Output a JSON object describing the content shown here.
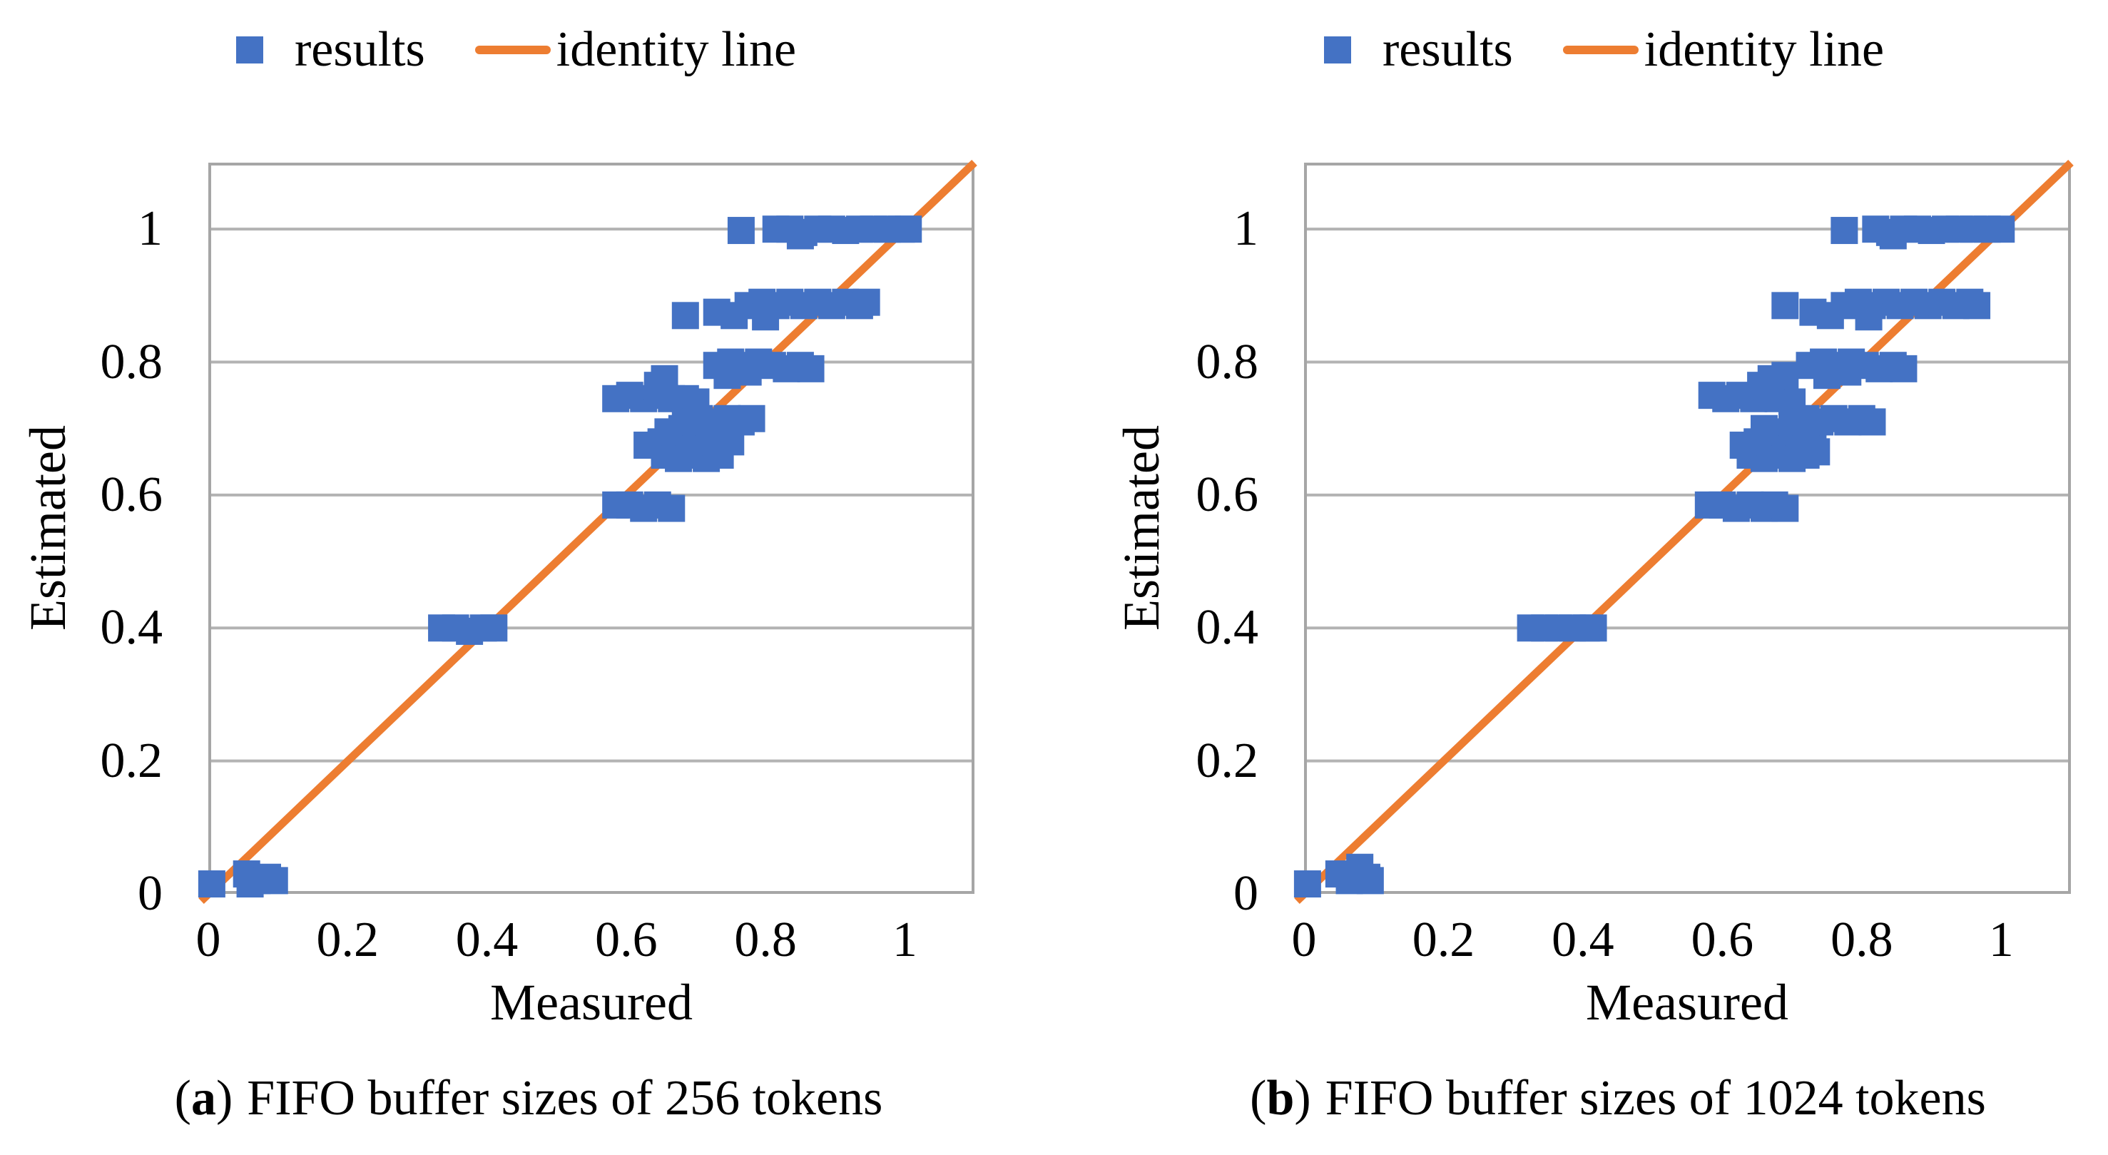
{
  "figure": {
    "background": "#FFFFFF",
    "text_color": "#000000"
  },
  "chart_data": [
    {
      "id": "a",
      "type": "scatter",
      "caption": {
        "open": "(",
        "letter": "a",
        "close": ")",
        "text": "FIFO buffer sizes of 256 tokens"
      },
      "xlabel": "Measured",
      "ylabel": "Estimated",
      "xlim": [
        0,
        1.1
      ],
      "ylim": [
        0,
        1.1
      ],
      "grid": {
        "axis": "y",
        "values": [
          0.2,
          0.4,
          0.6,
          0.8,
          1.0
        ],
        "color": "#B3B3B3"
      },
      "border_color": "#A6A6A6",
      "x_ticks": [
        {
          "v": 0,
          "label": "0"
        },
        {
          "v": 0.2,
          "label": "0.2"
        },
        {
          "v": 0.4,
          "label": "0.4"
        },
        {
          "v": 0.6,
          "label": "0.6"
        },
        {
          "v": 0.8,
          "label": "0.8"
        },
        {
          "v": 1,
          "label": "1"
        }
      ],
      "y_ticks": [
        {
          "v": 0,
          "label": "0"
        },
        {
          "v": 0.2,
          "label": "0.2"
        },
        {
          "v": 0.4,
          "label": "0.4"
        },
        {
          "v": 0.6,
          "label": "0.6"
        },
        {
          "v": 0.8,
          "label": "0.8"
        },
        {
          "v": 1,
          "label": "1"
        }
      ],
      "legend": [
        {
          "label": "results",
          "marker": "square",
          "color": "#4472C4"
        },
        {
          "label": "identity line",
          "marker": "line",
          "color": "#ED7D31"
        }
      ],
      "identity_line": {
        "from": [
          0,
          0
        ],
        "to": [
          1.1,
          1.1
        ],
        "color": "#ED7D31",
        "width": 11
      },
      "series": [
        {
          "name": "results",
          "marker": "square",
          "marker_size": 38,
          "color": "#4472C4",
          "points": [
            [
              0.005,
              0.015
            ],
            [
              0.055,
              0.03
            ],
            [
              0.06,
              0.015
            ],
            [
              0.07,
              0.02
            ],
            [
              0.085,
              0.025
            ],
            [
              0.095,
              0.02
            ],
            [
              0.335,
              0.4
            ],
            [
              0.355,
              0.4
            ],
            [
              0.375,
              0.395
            ],
            [
              0.395,
              0.4
            ],
            [
              0.41,
              0.4
            ],
            [
              0.585,
              0.585
            ],
            [
              0.605,
              0.585
            ],
            [
              0.625,
              0.58
            ],
            [
              0.645,
              0.585
            ],
            [
              0.665,
              0.58
            ],
            [
              0.585,
              0.745
            ],
            [
              0.605,
              0.75
            ],
            [
              0.625,
              0.745
            ],
            [
              0.645,
              0.75
            ],
            [
              0.665,
              0.745
            ],
            [
              0.685,
              0.745
            ],
            [
              0.7,
              0.74
            ],
            [
              0.645,
              0.765
            ],
            [
              0.655,
              0.775
            ],
            [
              0.655,
              0.66
            ],
            [
              0.675,
              0.655
            ],
            [
              0.695,
              0.66
            ],
            [
              0.715,
              0.655
            ],
            [
              0.735,
              0.66
            ],
            [
              0.63,
              0.675
            ],
            [
              0.65,
              0.68
            ],
            [
              0.67,
              0.68
            ],
            [
              0.69,
              0.675
            ],
            [
              0.71,
              0.68
            ],
            [
              0.73,
              0.675
            ],
            [
              0.75,
              0.68
            ],
            [
              0.66,
              0.695
            ],
            [
              0.68,
              0.7
            ],
            [
              0.7,
              0.7
            ],
            [
              0.72,
              0.695
            ],
            [
              0.745,
              0.7
            ],
            [
              0.685,
              0.71
            ],
            [
              0.705,
              0.715
            ],
            [
              0.725,
              0.71
            ],
            [
              0.745,
              0.715
            ],
            [
              0.765,
              0.71
            ],
            [
              0.78,
              0.715
            ],
            [
              0.73,
              0.795
            ],
            [
              0.75,
              0.8
            ],
            [
              0.77,
              0.795
            ],
            [
              0.79,
              0.8
            ],
            [
              0.81,
              0.795
            ],
            [
              0.83,
              0.79
            ],
            [
              0.85,
              0.795
            ],
            [
              0.865,
              0.79
            ],
            [
              0.745,
              0.78
            ],
            [
              0.775,
              0.785
            ],
            [
              0.685,
              0.87
            ],
            [
              0.73,
              0.875
            ],
            [
              0.755,
              0.87
            ],
            [
              0.775,
              0.885
            ],
            [
              0.795,
              0.89
            ],
            [
              0.815,
              0.885
            ],
            [
              0.835,
              0.89
            ],
            [
              0.855,
              0.885
            ],
            [
              0.875,
              0.89
            ],
            [
              0.895,
              0.885
            ],
            [
              0.915,
              0.89
            ],
            [
              0.935,
              0.885
            ],
            [
              0.945,
              0.89
            ],
            [
              0.8,
              0.868
            ],
            [
              0.765,
              0.998
            ],
            [
              0.815,
              1.0
            ],
            [
              0.835,
              1.0
            ],
            [
              0.85,
              0.99
            ],
            [
              0.855,
              0.995
            ],
            [
              0.875,
              1.0
            ],
            [
              0.895,
              1.0
            ],
            [
              0.915,
              0.998
            ],
            [
              0.935,
              1.0
            ],
            [
              0.955,
              1.0
            ],
            [
              0.975,
              1.0
            ],
            [
              0.995,
              1.0
            ],
            [
              1.005,
              1.0
            ]
          ]
        }
      ]
    },
    {
      "id": "b",
      "type": "scatter",
      "caption": {
        "open": "(",
        "letter": "b",
        "close": ")",
        "text": "FIFO buffer sizes of 1024 tokens"
      },
      "xlabel": "Measured",
      "ylabel": "Estimated",
      "xlim": [
        0,
        1.1
      ],
      "ylim": [
        0,
        1.1
      ],
      "grid": {
        "axis": "y",
        "values": [
          0.2,
          0.4,
          0.6,
          0.8,
          1.0
        ],
        "color": "#B3B3B3"
      },
      "border_color": "#A6A6A6",
      "x_ticks": [
        {
          "v": 0,
          "label": "0"
        },
        {
          "v": 0.2,
          "label": "0.2"
        },
        {
          "v": 0.4,
          "label": "0.4"
        },
        {
          "v": 0.6,
          "label": "0.6"
        },
        {
          "v": 0.8,
          "label": "0.8"
        },
        {
          "v": 1,
          "label": "1"
        }
      ],
      "y_ticks": [
        {
          "v": 0,
          "label": "0"
        },
        {
          "v": 0.2,
          "label": "0.2"
        },
        {
          "v": 0.4,
          "label": "0.4"
        },
        {
          "v": 0.6,
          "label": "0.6"
        },
        {
          "v": 0.8,
          "label": "0.8"
        },
        {
          "v": 1,
          "label": "1"
        }
      ],
      "legend": [
        {
          "label": "results",
          "marker": "square",
          "color": "#4472C4"
        },
        {
          "label": "identity line",
          "marker": "line",
          "color": "#ED7D31"
        }
      ],
      "identity_line": {
        "from": [
          0,
          0
        ],
        "to": [
          1.1,
          1.1
        ],
        "color": "#ED7D31",
        "width": 11
      },
      "series": [
        {
          "name": "results",
          "marker": "square",
          "marker_size": 38,
          "color": "#4472C4",
          "points": [
            [
              0.005,
              0.015
            ],
            [
              0.05,
              0.03
            ],
            [
              0.065,
              0.02
            ],
            [
              0.08,
              0.04
            ],
            [
              0.09,
              0.025
            ],
            [
              0.095,
              0.02
            ],
            [
              0.325,
              0.4
            ],
            [
              0.345,
              0.4
            ],
            [
              0.365,
              0.4
            ],
            [
              0.385,
              0.4
            ],
            [
              0.405,
              0.4
            ],
            [
              0.415,
              0.4
            ],
            [
              0.58,
              0.585
            ],
            [
              0.6,
              0.585
            ],
            [
              0.62,
              0.58
            ],
            [
              0.64,
              0.585
            ],
            [
              0.66,
              0.58
            ],
            [
              0.675,
              0.585
            ],
            [
              0.69,
              0.58
            ],
            [
              0.585,
              0.75
            ],
            [
              0.605,
              0.745
            ],
            [
              0.625,
              0.75
            ],
            [
              0.645,
              0.745
            ],
            [
              0.665,
              0.75
            ],
            [
              0.68,
              0.745
            ],
            [
              0.7,
              0.74
            ],
            [
              0.655,
              0.765
            ],
            [
              0.67,
              0.775
            ],
            [
              0.69,
              0.78
            ],
            [
              0.64,
              0.66
            ],
            [
              0.66,
              0.655
            ],
            [
              0.68,
              0.66
            ],
            [
              0.7,
              0.655
            ],
            [
              0.72,
              0.66
            ],
            [
              0.735,
              0.665
            ],
            [
              0.63,
              0.675
            ],
            [
              0.65,
              0.68
            ],
            [
              0.67,
              0.675
            ],
            [
              0.69,
              0.68
            ],
            [
              0.71,
              0.675
            ],
            [
              0.73,
              0.68
            ],
            [
              0.66,
              0.7
            ],
            [
              0.68,
              0.695
            ],
            [
              0.7,
              0.7
            ],
            [
              0.72,
              0.705
            ],
            [
              0.7,
              0.71
            ],
            [
              0.72,
              0.715
            ],
            [
              0.74,
              0.71
            ],
            [
              0.76,
              0.715
            ],
            [
              0.78,
              0.71
            ],
            [
              0.8,
              0.715
            ],
            [
              0.815,
              0.71
            ],
            [
              0.725,
              0.795
            ],
            [
              0.745,
              0.8
            ],
            [
              0.765,
              0.795
            ],
            [
              0.785,
              0.8
            ],
            [
              0.805,
              0.795
            ],
            [
              0.825,
              0.79
            ],
            [
              0.845,
              0.795
            ],
            [
              0.86,
              0.79
            ],
            [
              0.75,
              0.78
            ],
            [
              0.78,
              0.785
            ],
            [
              0.69,
              0.885
            ],
            [
              0.73,
              0.875
            ],
            [
              0.755,
              0.87
            ],
            [
              0.775,
              0.885
            ],
            [
              0.795,
              0.89
            ],
            [
              0.815,
              0.885
            ],
            [
              0.835,
              0.89
            ],
            [
              0.855,
              0.885
            ],
            [
              0.875,
              0.89
            ],
            [
              0.895,
              0.885
            ],
            [
              0.915,
              0.89
            ],
            [
              0.935,
              0.885
            ],
            [
              0.955,
              0.89
            ],
            [
              0.965,
              0.885
            ],
            [
              0.81,
              0.868
            ],
            [
              0.775,
              0.998
            ],
            [
              0.82,
              1.0
            ],
            [
              0.84,
              0.995
            ],
            [
              0.845,
              0.99
            ],
            [
              0.86,
              1.0
            ],
            [
              0.88,
              1.0
            ],
            [
              0.9,
              0.998
            ],
            [
              0.92,
              1.0
            ],
            [
              0.94,
              1.0
            ],
            [
              0.96,
              1.0
            ],
            [
              0.98,
              1.0
            ],
            [
              1.0,
              1.0
            ]
          ]
        }
      ]
    }
  ]
}
